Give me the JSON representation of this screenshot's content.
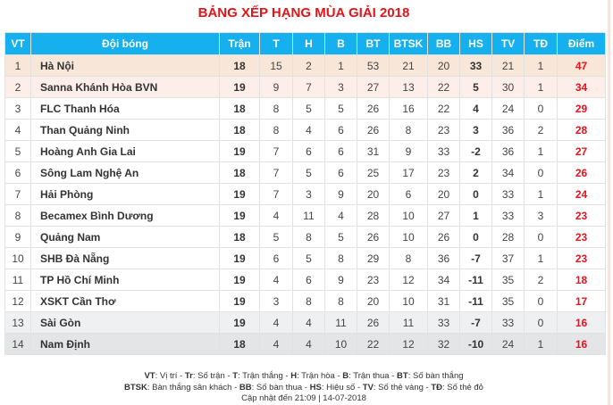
{
  "title": "BẢNG XẾP HẠNG MÙA GIẢI 2018",
  "headers": [
    "VT",
    "Đội bóng",
    "Trận",
    "T",
    "H",
    "B",
    "BT",
    "BTSK",
    "BB",
    "HS",
    "TV",
    "TĐ",
    "Điểm"
  ],
  "rows": [
    [
      "1",
      "Hà Nội",
      "18",
      "15",
      "2",
      "1",
      "53",
      "21",
      "20",
      "33",
      "21",
      "1",
      "47"
    ],
    [
      "2",
      "Sanna Khánh Hòa BVN",
      "19",
      "9",
      "7",
      "3",
      "27",
      "13",
      "22",
      "5",
      "30",
      "1",
      "34"
    ],
    [
      "3",
      "FLC Thanh Hóa",
      "18",
      "8",
      "5",
      "5",
      "26",
      "16",
      "22",
      "4",
      "24",
      "0",
      "29"
    ],
    [
      "4",
      "Than Quảng Ninh",
      "18",
      "8",
      "4",
      "6",
      "26",
      "8",
      "23",
      "3",
      "36",
      "2",
      "28"
    ],
    [
      "5",
      "Hoàng Anh Gia Lai",
      "19",
      "7",
      "6",
      "6",
      "31",
      "9",
      "33",
      "-2",
      "36",
      "1",
      "27"
    ],
    [
      "6",
      "Sông Lam Nghệ An",
      "18",
      "7",
      "5",
      "6",
      "25",
      "17",
      "23",
      "2",
      "34",
      "0",
      "26"
    ],
    [
      "7",
      "Hải Phòng",
      "19",
      "7",
      "3",
      "9",
      "20",
      "6",
      "20",
      "0",
      "33",
      "1",
      "24"
    ],
    [
      "8",
      "Becamex Bình Dương",
      "19",
      "4",
      "11",
      "4",
      "28",
      "10",
      "27",
      "1",
      "33",
      "3",
      "23"
    ],
    [
      "9",
      "Quảng Nam",
      "18",
      "5",
      "8",
      "5",
      "26",
      "10",
      "26",
      "0",
      "28",
      "0",
      "23"
    ],
    [
      "10",
      "SHB Đà Nẵng",
      "19",
      "6",
      "5",
      "8",
      "29",
      "8",
      "36",
      "-7",
      "37",
      "1",
      "23"
    ],
    [
      "11",
      "TP Hồ Chí Minh",
      "19",
      "4",
      "6",
      "9",
      "23",
      "12",
      "34",
      "-11",
      "35",
      "2",
      "18"
    ],
    [
      "12",
      "XSKT Cần Thơ",
      "19",
      "3",
      "8",
      "8",
      "20",
      "10",
      "31",
      "-11",
      "35",
      "0",
      "17"
    ],
    [
      "13",
      "Sài Gòn",
      "19",
      "4",
      "4",
      "11",
      "26",
      "11",
      "33",
      "-7",
      "33",
      "0",
      "16"
    ],
    [
      "14",
      "Nam Định",
      "18",
      "4",
      "4",
      "10",
      "22",
      "12",
      "32",
      "-10",
      "24",
      "1",
      "16"
    ]
  ],
  "legend": {
    "line1": [
      [
        "VT",
        ": Vị trí"
      ],
      [
        "Tr",
        ": Số trận"
      ],
      [
        "T",
        ": Trận thắng"
      ],
      [
        "H",
        ": Trận hòa"
      ],
      [
        "B",
        ": Trận thua"
      ],
      [
        "BT",
        ": Số bàn thắng"
      ]
    ],
    "line2": [
      [
        "BTSK",
        ": Bàn thắng sân khách"
      ],
      [
        "BB",
        ": Số bàn thua"
      ],
      [
        "HS",
        ": Hiệu số"
      ],
      [
        "TV",
        ": Số thẻ vàng"
      ],
      [
        "TĐ",
        ": Số thẻ đỏ"
      ]
    ],
    "updated": "Cập nhật đến 21:09 | 14-07-2018"
  },
  "colors": {
    "header": "#16b0ef",
    "title": "#e3151a",
    "points": "#f0101a"
  }
}
